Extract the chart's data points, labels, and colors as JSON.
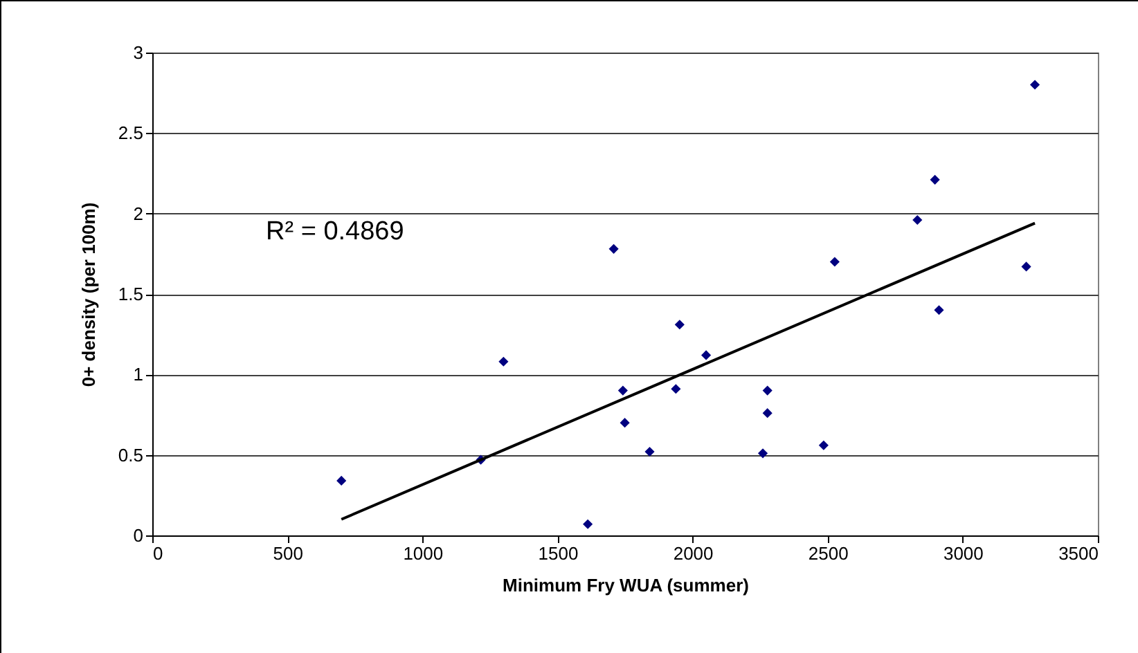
{
  "chart_data": {
    "type": "scatter",
    "xlabel": "Minimum Fry WUA (summer)",
    "ylabel": "0+ density (per 100m)",
    "annotations": [
      "R² = 0.4869"
    ],
    "series": [
      {
        "color": "#000080",
        "marker": "diamond",
        "x": [
          700,
          1216,
          1300,
          1612,
          1708,
          1742,
          1749,
          1841,
          1938,
          1952,
          2050,
          2260,
          2277,
          2277,
          2485,
          2526,
          2832,
          2897,
          2912,
          3235,
          3267
        ],
        "values": [
          0.34,
          0.47,
          1.08,
          0.07,
          1.78,
          0.9,
          0.7,
          0.52,
          0.91,
          1.31,
          1.12,
          0.51,
          0.9,
          0.76,
          0.56,
          1.7,
          1.96,
          2.21,
          1.4,
          1.67,
          2.8
        ]
      },
      {
        "type": "line",
        "marker": "none",
        "color": "#000000",
        "x": [
          700,
          3267
        ],
        "values": [
          0.1,
          1.94
        ]
      }
    ],
    "xlim": [
      0,
      3500
    ],
    "xticks": [
      0,
      500,
      1000,
      1500,
      2000,
      2500,
      3000,
      3500
    ],
    "ylim": [
      0,
      3
    ],
    "yticks": [
      0,
      0.5,
      1,
      1.5,
      2,
      2.5,
      3
    ],
    "grid": "y"
  }
}
